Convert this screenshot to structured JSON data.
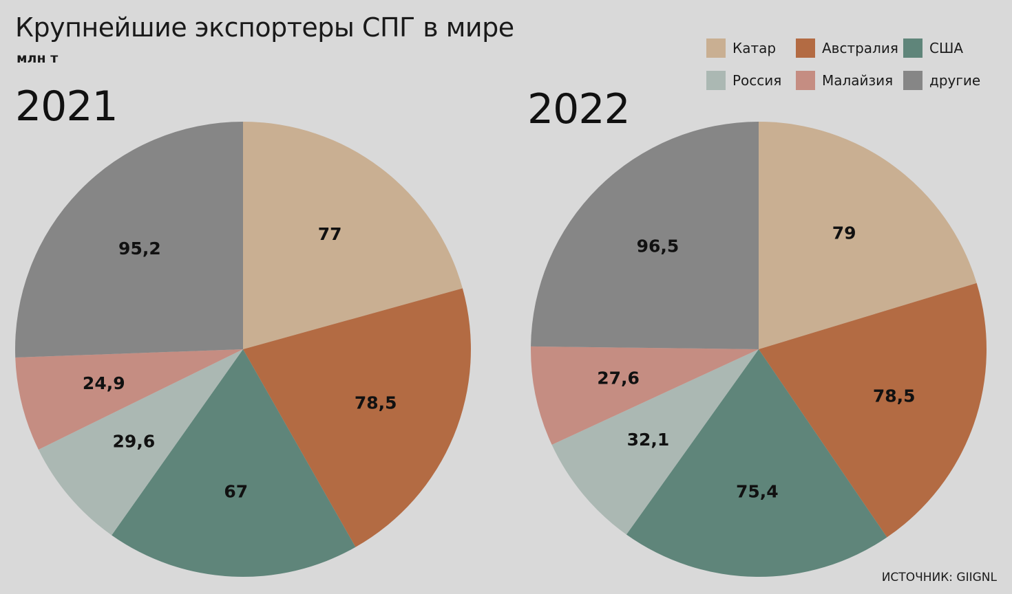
{
  "title": "Крупнейшие экспортеры СПГ в мире",
  "unit": "млн т",
  "source": "ИСТОЧНИК: GIIGNL",
  "legend": [
    {
      "label": "Катар",
      "color": "#c9af92"
    },
    {
      "label": "Австралия",
      "color": "#b36b43"
    },
    {
      "label": "США",
      "color": "#5f857a"
    },
    {
      "label": "Россия",
      "color": "#abb8b3"
    },
    {
      "label": "Малайзия",
      "color": "#c58d82"
    },
    {
      "label": "другие",
      "color": "#868686"
    }
  ],
  "chart_data": [
    {
      "type": "pie",
      "title": "2021",
      "categories": [
        "Катар",
        "Австралия",
        "США",
        "Россия",
        "Малайзия",
        "другие"
      ],
      "values": [
        77,
        78.5,
        67,
        29.6,
        24.9,
        95.2
      ],
      "value_labels": [
        "77",
        "78,5",
        "67",
        "29,6",
        "24,9",
        "95,2"
      ]
    },
    {
      "type": "pie",
      "title": "2022",
      "categories": [
        "Катар",
        "Австралия",
        "США",
        "Россия",
        "Малайзия",
        "другие"
      ],
      "values": [
        79,
        78.5,
        75.4,
        32.1,
        27.6,
        96.5
      ],
      "value_labels": [
        "79",
        "78,5",
        "75,4",
        "32,1",
        "27,6",
        "96,5"
      ]
    }
  ]
}
